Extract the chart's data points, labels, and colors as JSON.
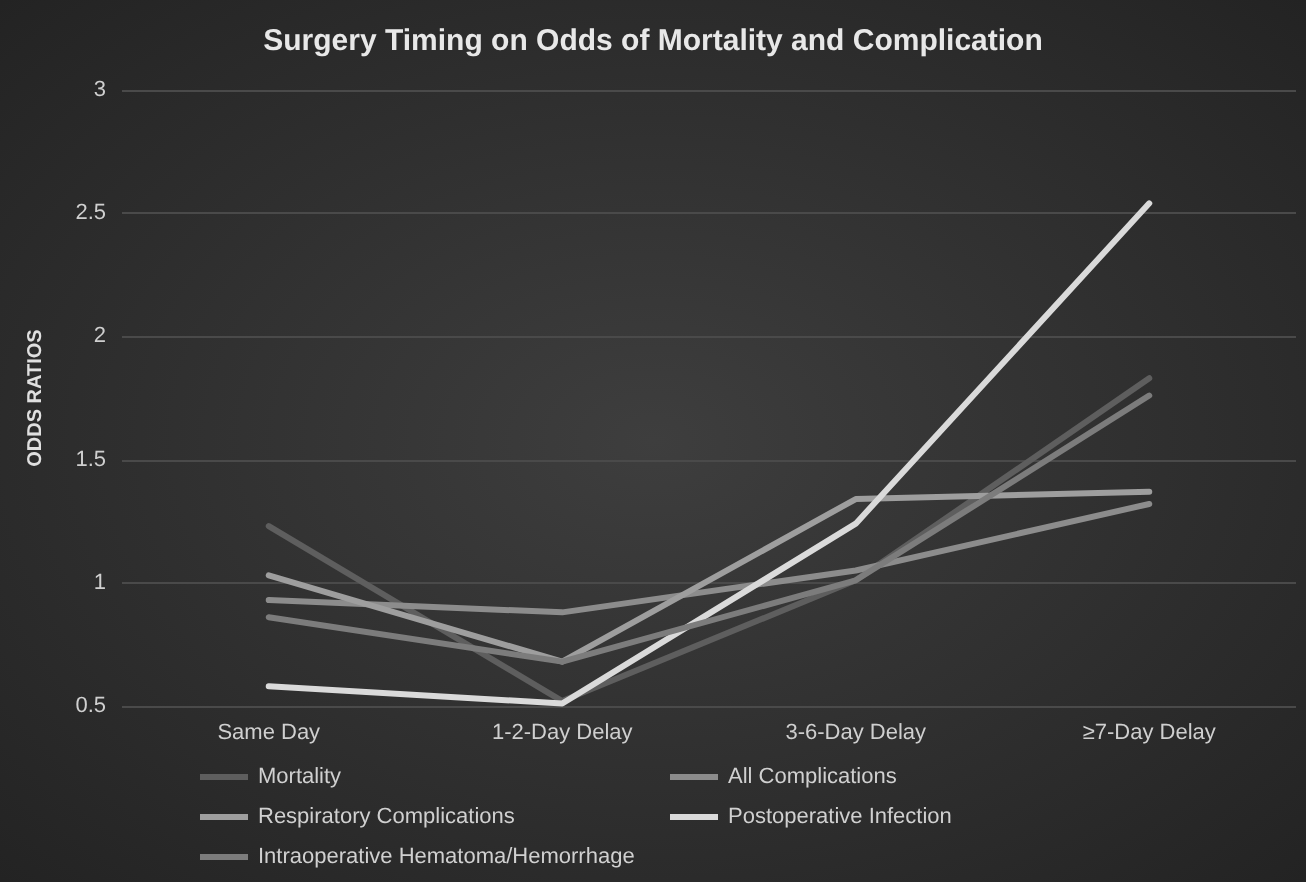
{
  "chart_data": {
    "type": "line",
    "title": "Surgery Timing on Odds of Mortality and Complication",
    "ylabel": "ODDS RATIOS",
    "categories": [
      "Same Day",
      "1-2-Day Delay",
      "3-6-Day Delay",
      "≥7-Day Delay"
    ],
    "series": [
      {
        "name": "Mortality",
        "color": "#5e5e5e",
        "values": [
          1.23,
          0.52,
          1.01,
          1.83
        ]
      },
      {
        "name": "All Complications",
        "color": "#8c8c8c",
        "values": [
          0.93,
          0.88,
          1.05,
          1.32
        ]
      },
      {
        "name": "Respiratory Complications",
        "color": "#9e9e9e",
        "values": [
          1.03,
          0.68,
          1.34,
          1.37
        ]
      },
      {
        "name": "Postoperative Infection",
        "color": "#dadada",
        "values": [
          0.58,
          0.51,
          1.24,
          2.54
        ]
      },
      {
        "name": "Intraoperative Hematoma/Hemorrhage",
        "color": "#7c7c7c",
        "values": [
          0.86,
          0.68,
          1.01,
          1.76
        ]
      }
    ],
    "ylim": [
      0.5,
      3
    ],
    "yticks": [
      0.5,
      1,
      1.5,
      2,
      2.5,
      3
    ],
    "grid": "y",
    "legend": "bottom",
    "marker": "none",
    "line_style": "solid"
  }
}
